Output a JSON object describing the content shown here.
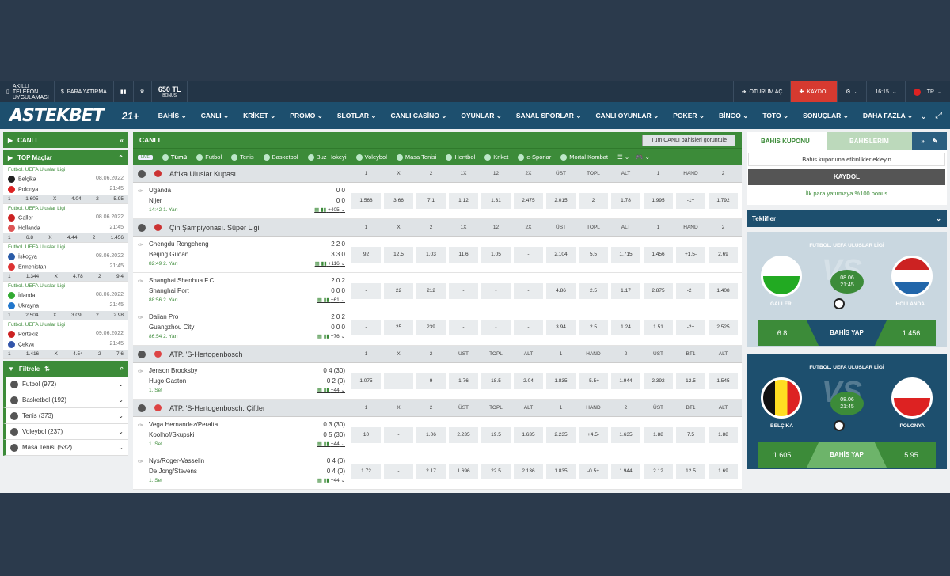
{
  "topbar": {
    "app_label": "AKILLI TELEFON UYGULAMASI",
    "deposit": "PARA YATIRMA",
    "bonus_amount": "650 TL",
    "bonus_label": "BONUS",
    "login": "OTURUM AÇ",
    "register": "KAYDOL",
    "time": "16:15",
    "lang": "TR"
  },
  "nav": {
    "logo": "ASTEKBET",
    "badge": "21+",
    "items": [
      "BAHİS",
      "CANLI",
      "KRİKET",
      "PROMO",
      "SLOTLAR",
      "CANLI CASİNO",
      "OYUNLAR",
      "SANAL SPORLAR",
      "CANLI OYUNLAR",
      "POKER",
      "BİNGO",
      "TOTO",
      "SONUÇLAR",
      "DAHA FAZLA"
    ]
  },
  "left": {
    "live": "CANLI",
    "top": "TOP Maçlar",
    "matches": [
      {
        "league": "Futbol. UEFA Uluslar Ligi",
        "t1": "Belçika",
        "d1": "08.06.2022",
        "t2": "Polonya",
        "d2": "21:45",
        "o1": "1.605",
        "ox": "4.04",
        "o2": "5.95",
        "f1": "#222",
        "f2": "#d22"
      },
      {
        "league": "Futbol. UEFA Uluslar Ligi",
        "t1": "Galler",
        "d1": "08.06.2022",
        "t2": "Hollanda",
        "d2": "21:45",
        "o1": "6.8",
        "ox": "4.44",
        "o2": "1.456",
        "f1": "#c22",
        "f2": "#d55"
      },
      {
        "league": "Futbol. UEFA Uluslar Ligi",
        "t1": "İskoçya",
        "d1": "08.06.2022",
        "t2": "Ermenistan",
        "d2": "21:45",
        "o1": "1.344",
        "ox": "4.78",
        "o2": "9.4",
        "f1": "#2a5ca8",
        "f2": "#d33"
      },
      {
        "league": "Futbol. UEFA Uluslar Ligi",
        "t1": "İrlanda",
        "d1": "08.06.2022",
        "t2": "Ukrayna",
        "d2": "21:45",
        "o1": "2.504",
        "ox": "3.09",
        "o2": "2.98",
        "f1": "#3a3",
        "f2": "#27c"
      },
      {
        "league": "Futbol. UEFA Uluslar Ligi",
        "t1": "Portekiz",
        "d1": "09.06.2022",
        "t2": "Çekya",
        "d2": "21:45",
        "o1": "1.416",
        "ox": "4.54",
        "o2": "7.6",
        "f1": "#c22",
        "f2": "#35a"
      }
    ],
    "filter": "Filtrele",
    "sports": [
      "Futbol (972)",
      "Basketbol (192)",
      "Tenis (373)",
      "Voleybol (237)",
      "Masa Tenisi (532)"
    ],
    "one": "1",
    "x": "X",
    "two": "2"
  },
  "center": {
    "live": "CANLI",
    "all_btn": "Tüm CANLI bahisleri görüntüle",
    "tabs": [
      "Tümü",
      "Futbol",
      "Tenis",
      "Basketbol",
      "Buz Hokeyi",
      "Voleybol",
      "Masa Tenisi",
      "Hentbol",
      "Kriket",
      "e-Sporlar",
      "Mortal Kombat"
    ],
    "leagues": [
      {
        "name": "Afrika Uluslar Kupası",
        "cols": [
          "1",
          "X",
          "2",
          "1X",
          "12",
          "2X",
          "ÜST",
          "TOPL",
          "ALT",
          "1",
          "HAND",
          "2"
        ],
        "rows": [
          {
            "t1": "Uganda",
            "t2": "Nijer",
            "s1": "0   0",
            "s2": "0   0",
            "status": "14:42  1. Yarı",
            "more": "+405",
            "odds": [
              "1.568",
              "3.66",
              "7.1",
              "1.12",
              "1.31",
              "2.475",
              "2.015",
              "2",
              "1.78",
              "1.995",
              "-1+",
              "1.792"
            ]
          }
        ]
      },
      {
        "name": "Çin Şampiyonası. Süper Ligi",
        "cols": [
          "1",
          "X",
          "2",
          "1X",
          "12",
          "2X",
          "ÜST",
          "TOPL",
          "ALT",
          "1",
          "HAND",
          "2"
        ],
        "rows": [
          {
            "t1": "Chengdu Rongcheng",
            "t2": "Beijing Guoan",
            "s1": "2  2  0",
            "s2": "3  3  0",
            "status": "82:49  2. Yarı",
            "more": "+116",
            "odds": [
              "92",
              "12.5",
              "1.03",
              "11.6",
              "1.05",
              "-",
              "2.104",
              "5.5",
              "1.715",
              "1.456",
              "+1.5-",
              "2.69"
            ]
          },
          {
            "t1": "Shanghai Shenhua F.C.",
            "t2": "Shanghai Port",
            "s1": "2  0  2",
            "s2": "0  0  0",
            "status": "88:56  2. Yarı",
            "more": "+61",
            "odds": [
              "-",
              "22",
              "212",
              "-",
              "-",
              "-",
              "4.86",
              "2.5",
              "1.17",
              "2.875",
              "-2+",
              "1.408"
            ]
          },
          {
            "t1": "Dalian Pro",
            "t2": "Guangzhou City",
            "s1": "2  0  2",
            "s2": "0  0  0",
            "status": "86:54  2. Yarı",
            "more": "+76",
            "odds": [
              "-",
              "25",
              "239",
              "-",
              "-",
              "-",
              "3.94",
              "2.5",
              "1.24",
              "1.51",
              "-2+",
              "2.525"
            ]
          }
        ]
      },
      {
        "name": "ATP. 'S-Hertogenbosch",
        "cols": [
          "1",
          "X",
          "2",
          "ÜST",
          "TOPL",
          "ALT",
          "1",
          "HAND",
          "2",
          "ÜST",
          "BT1",
          "ALT"
        ],
        "rows": [
          {
            "t1": "Jenson Brooksby",
            "t2": "Hugo Gaston",
            "s1": "0   4  (30)",
            "s2": "0   2   (0)",
            "status": "1. Set",
            "more": "+44",
            "odds": [
              "1.075",
              "-",
              "9",
              "1.76",
              "18.5",
              "2.04",
              "1.835",
              "-5.5+",
              "1.944",
              "2.392",
              "12.5",
              "1.545"
            ]
          }
        ]
      },
      {
        "name": "ATP. 'S-Hertogenbosch. Çiftler",
        "cols": [
          "1",
          "X",
          "2",
          "ÜST",
          "TOPL",
          "ALT",
          "1",
          "HAND",
          "2",
          "ÜST",
          "BT1",
          "ALT"
        ],
        "rows": [
          {
            "t1": "Vega Hernandez/Peralta",
            "t2": "Koolhof/Skupski",
            "s1": "0   3  (30)",
            "s2": "0   5  (30)",
            "status": "1. Set",
            "more": "+44",
            "odds": [
              "10",
              "-",
              "1.06",
              "2.235",
              "19.5",
              "1.635",
              "2.235",
              "+4.5-",
              "1.635",
              "1.88",
              "7.5",
              "1.88"
            ]
          },
          {
            "t1": "Nys/Roger-Vasselin",
            "t2": "De Jong/Stevens",
            "s1": "0   4   (0)",
            "s2": "0   4   (0)",
            "status": "1. Set",
            "more": "+44",
            "odds": [
              "1.72",
              "-",
              "2.17",
              "1.696",
              "22.5",
              "2.136",
              "1.835",
              "-0.5+",
              "1.944",
              "2.12",
              "12.5",
              "1.69"
            ]
          }
        ]
      }
    ]
  },
  "right": {
    "tab1": "BAHİS KUPONU",
    "tab2": "BAHİSLERİM",
    "slip_msg": "Bahis kuponuna etkinlikler ekleyin",
    "register": "KAYDOL",
    "bonus": "İlk para yatırmaya %100 bonus",
    "offers": "Teklifler",
    "promos": [
      {
        "title": "FUTBOL. UEFA ULUSLAR LİGİ",
        "t1": "GALLER",
        "t2": "HOLLANDA",
        "date": "08.06",
        "time": "21:45",
        "o1": "6.8",
        "o2": "1.456",
        "cta": "BAHİS YAP"
      },
      {
        "title": "FUTBOL. UEFA ULUSLAR LİGİ",
        "t1": "BELÇİKA",
        "t2": "POLONYA",
        "date": "08.06",
        "time": "21:45",
        "o1": "1.605",
        "o2": "5.95",
        "cta": "BAHİS YAP"
      }
    ]
  }
}
